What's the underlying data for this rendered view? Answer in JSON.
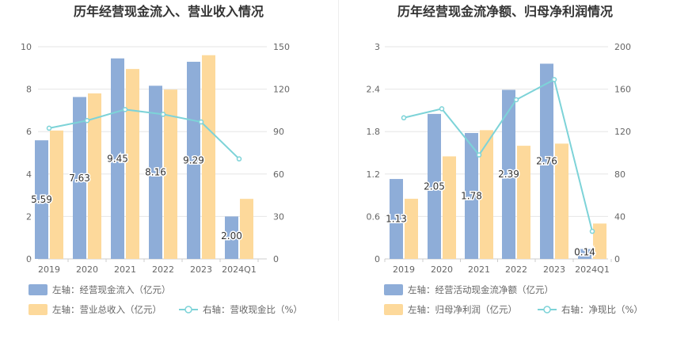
{
  "colors": {
    "bar_blue": "#8eadd8",
    "bar_orange": "#fdd99b",
    "line_teal": "#7dd3d8",
    "axis_text": "#666666",
    "grid": "#e6e6e6",
    "title": "#333333"
  },
  "chart_data": [
    {
      "type": "bar",
      "title": "历年经营现金流入、营业收入情况",
      "categories": [
        "2019",
        "2020",
        "2021",
        "2022",
        "2023",
        "2024Q1"
      ],
      "left_axis": {
        "ylim": [
          0,
          10
        ],
        "ticks": [
          "0",
          "2",
          "4",
          "6",
          "8",
          "10"
        ]
      },
      "right_axis": {
        "ylim": [
          0,
          150
        ],
        "ticks": [
          "0",
          "30",
          "60",
          "90",
          "120",
          "150"
        ]
      },
      "series": [
        {
          "name": "左轴：经营现金流入（亿元）",
          "axis": "left",
          "kind": "bar",
          "values": [
            5.59,
            7.63,
            9.45,
            8.16,
            9.29,
            2.0
          ],
          "labels": [
            "5.59",
            "7.63",
            "9.45",
            "8.16",
            "9.29",
            "2.00"
          ]
        },
        {
          "name": "左轴：营业总收入（亿元）",
          "axis": "left",
          "kind": "bar",
          "values": [
            6.05,
            7.8,
            8.95,
            7.98,
            9.6,
            2.83
          ]
        },
        {
          "name": "右轴：营收现金比（%）",
          "axis": "right",
          "kind": "line",
          "values": [
            92.4,
            97.8,
            105.6,
            102.2,
            96.8,
            70.7
          ]
        }
      ],
      "legend": [
        {
          "name": "左轴：经营现金流入（亿元）",
          "symbol": "bar_blue"
        },
        {
          "name": "左轴：营业总收入（亿元）",
          "symbol": "bar_orange"
        },
        {
          "name": "右轴：营收现金比（%）",
          "symbol": "line_teal"
        }
      ],
      "grid": true,
      "legend_position": "bottom-left"
    },
    {
      "type": "bar",
      "title": "历年经营现金流净额、归母净利润情况",
      "categories": [
        "2019",
        "2020",
        "2021",
        "2022",
        "2023",
        "2024Q1"
      ],
      "left_axis": {
        "ylim": [
          0,
          3
        ],
        "ticks": [
          "0",
          "0.6",
          "1.2",
          "1.8",
          "2.4",
          "3"
        ]
      },
      "right_axis": {
        "ylim": [
          0,
          200
        ],
        "ticks": [
          "0",
          "40",
          "80",
          "120",
          "160",
          "200"
        ]
      },
      "series": [
        {
          "name": "左轴：经营活动现金流净额（亿元）",
          "axis": "left",
          "kind": "bar",
          "values": [
            1.13,
            2.05,
            1.78,
            2.39,
            2.76,
            0.14
          ],
          "labels": [
            "1.13",
            "2.05",
            "1.78",
            "2.39",
            "2.76",
            "0.14"
          ]
        },
        {
          "name": "左轴：归母净利润（亿元）",
          "axis": "left",
          "kind": "bar",
          "values": [
            0.85,
            1.45,
            1.82,
            1.6,
            1.63,
            0.5
          ]
        },
        {
          "name": "右轴：净现比（%）",
          "axis": "right",
          "kind": "line",
          "values": [
            133,
            141.5,
            98,
            150,
            169,
            26
          ]
        }
      ],
      "legend": [
        {
          "name": "左轴：经营活动现金流净额（亿元）",
          "symbol": "bar_blue"
        },
        {
          "name": "左轴：归母净利润（亿元）",
          "symbol": "bar_orange"
        },
        {
          "name": "右轴：净现比（%）",
          "symbol": "line_teal"
        }
      ],
      "grid": true,
      "legend_position": "bottom-left"
    }
  ]
}
